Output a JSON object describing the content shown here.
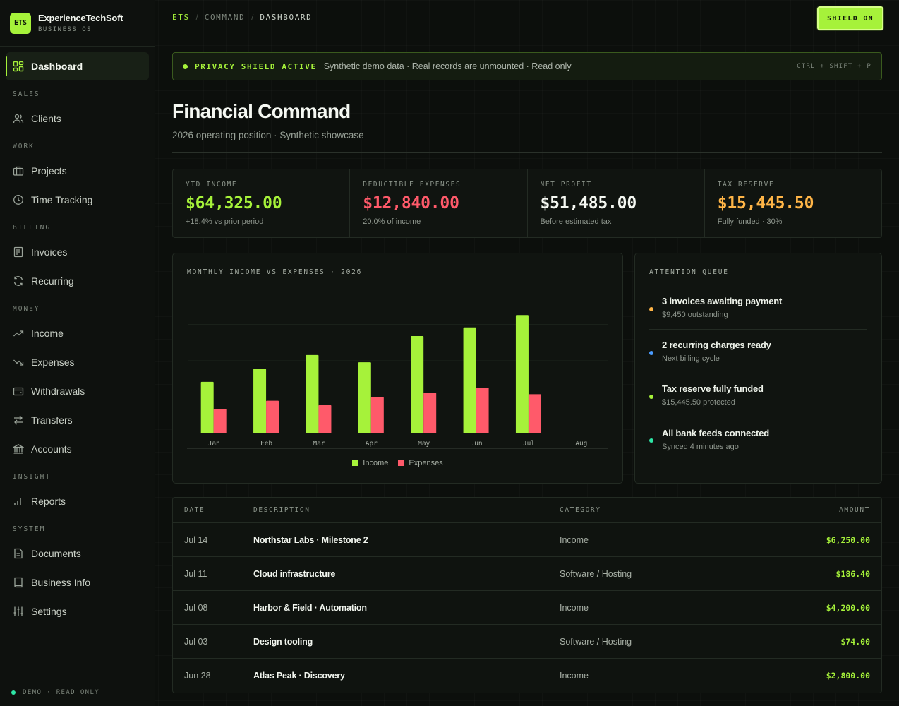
{
  "brand": {
    "logo": "ETS",
    "name": "ExperienceTechSoft",
    "subtitle": "BUSINESS OS"
  },
  "sidebar": {
    "active": {
      "label": "Dashboard",
      "icon": "dashboard-grid-icon"
    },
    "sections": [
      {
        "label": "SALES",
        "items": [
          {
            "label": "Clients",
            "icon": "users-icon"
          }
        ]
      },
      {
        "label": "WORK",
        "items": [
          {
            "label": "Projects",
            "icon": "briefcase-icon"
          },
          {
            "label": "Time Tracking",
            "icon": "clock-icon"
          }
        ]
      },
      {
        "label": "BILLING",
        "items": [
          {
            "label": "Invoices",
            "icon": "invoice-icon"
          },
          {
            "label": "Recurring",
            "icon": "refresh-icon"
          }
        ]
      },
      {
        "label": "MONEY",
        "items": [
          {
            "label": "Income",
            "icon": "trend-up-icon"
          },
          {
            "label": "Expenses",
            "icon": "trend-down-icon"
          },
          {
            "label": "Withdrawals",
            "icon": "wallet-icon"
          },
          {
            "label": "Transfers",
            "icon": "transfer-icon"
          },
          {
            "label": "Accounts",
            "icon": "bank-icon"
          }
        ]
      },
      {
        "label": "INSIGHT",
        "items": [
          {
            "label": "Reports",
            "icon": "bar-chart-icon"
          }
        ]
      },
      {
        "label": "SYSTEM",
        "items": [
          {
            "label": "Documents",
            "icon": "document-icon"
          },
          {
            "label": "Business Info",
            "icon": "book-icon"
          },
          {
            "label": "Settings",
            "icon": "sliders-icon"
          }
        ]
      }
    ],
    "footer": "DEMO · READ ONLY"
  },
  "topbar": {
    "breadcrumb": [
      "ETS",
      "COMMAND",
      "DASHBOARD"
    ],
    "shield_button": "SHIELD ON"
  },
  "banner": {
    "title": "PRIVACY SHIELD ACTIVE",
    "description": "Synthetic demo data · Real records are unmounted · Read only",
    "shortcut": "CTRL + SHIFT + P"
  },
  "page": {
    "title": "Financial Command",
    "subtitle": "2026 operating position · Synthetic showcase"
  },
  "kpis": [
    {
      "label": "YTD INCOME",
      "value": "$64,325.00",
      "note": "+18.4% vs prior period",
      "color": "#a6f23a"
    },
    {
      "label": "DEDUCTIBLE EXPENSES",
      "value": "$12,840.00",
      "note": "20.0% of income",
      "color": "#ff5a6a"
    },
    {
      "label": "NET PROFIT",
      "value": "$51,485.00",
      "note": "Before estimated tax",
      "color": "#f5f8f2"
    },
    {
      "label": "TAX RESERVE",
      "value": "$15,445.50",
      "note": "Fully funded · 30%",
      "color": "#ffb547"
    }
  ],
  "chart_panel_title": "MONTHLY INCOME VS EXPENSES · 2026",
  "chart_data": {
    "type": "bar",
    "title": "MONTHLY INCOME VS EXPENSES · 2026",
    "categories": [
      "Jan",
      "Feb",
      "Mar",
      "Apr",
      "May",
      "Jun",
      "Jul",
      "Aug"
    ],
    "series": [
      {
        "name": "Income",
        "color": "#a6f23a",
        "values": [
          7.1,
          8.9,
          10.8,
          9.8,
          13.4,
          14.6,
          16.3,
          0
        ]
      },
      {
        "name": "Expenses",
        "color": "#ff5a6a",
        "values": [
          3.4,
          4.5,
          3.9,
          5.0,
          5.6,
          6.3,
          5.4,
          0
        ]
      }
    ],
    "grid": true,
    "legend": "bottom"
  },
  "queue": {
    "title": "ATTENTION QUEUE",
    "items": [
      {
        "title": "3 invoices awaiting payment",
        "sub": "$9,450 outstanding",
        "color": "#ffb547"
      },
      {
        "title": "2 recurring charges ready",
        "sub": "Next billing cycle",
        "color": "#4a9cff"
      },
      {
        "title": "Tax reserve fully funded",
        "sub": "$15,445.50 protected",
        "color": "#a6f23a"
      },
      {
        "title": "All bank feeds connected",
        "sub": "Synced 4 minutes ago",
        "color": "#2ee6a6"
      }
    ]
  },
  "table": {
    "headers": {
      "date": "DATE",
      "description": "DESCRIPTION",
      "category": "CATEGORY",
      "amount": "AMOUNT"
    },
    "rows": [
      {
        "date": "Jul 14",
        "description": "Northstar Labs · Milestone 2",
        "category": "Income",
        "amount": "$6,250.00"
      },
      {
        "date": "Jul 11",
        "description": "Cloud infrastructure",
        "category": "Software / Hosting",
        "amount": "$186.40"
      },
      {
        "date": "Jul 08",
        "description": "Harbor & Field · Automation",
        "category": "Income",
        "amount": "$4,200.00"
      },
      {
        "date": "Jul 03",
        "description": "Design tooling",
        "category": "Software / Hosting",
        "amount": "$74.00"
      },
      {
        "date": "Jun 28",
        "description": "Atlas Peak · Discovery",
        "category": "Income",
        "amount": "$2,800.00"
      }
    ]
  },
  "colors": {
    "accent": "#a6f23a",
    "expense": "#ff5a6a",
    "warning": "#ffb547"
  }
}
